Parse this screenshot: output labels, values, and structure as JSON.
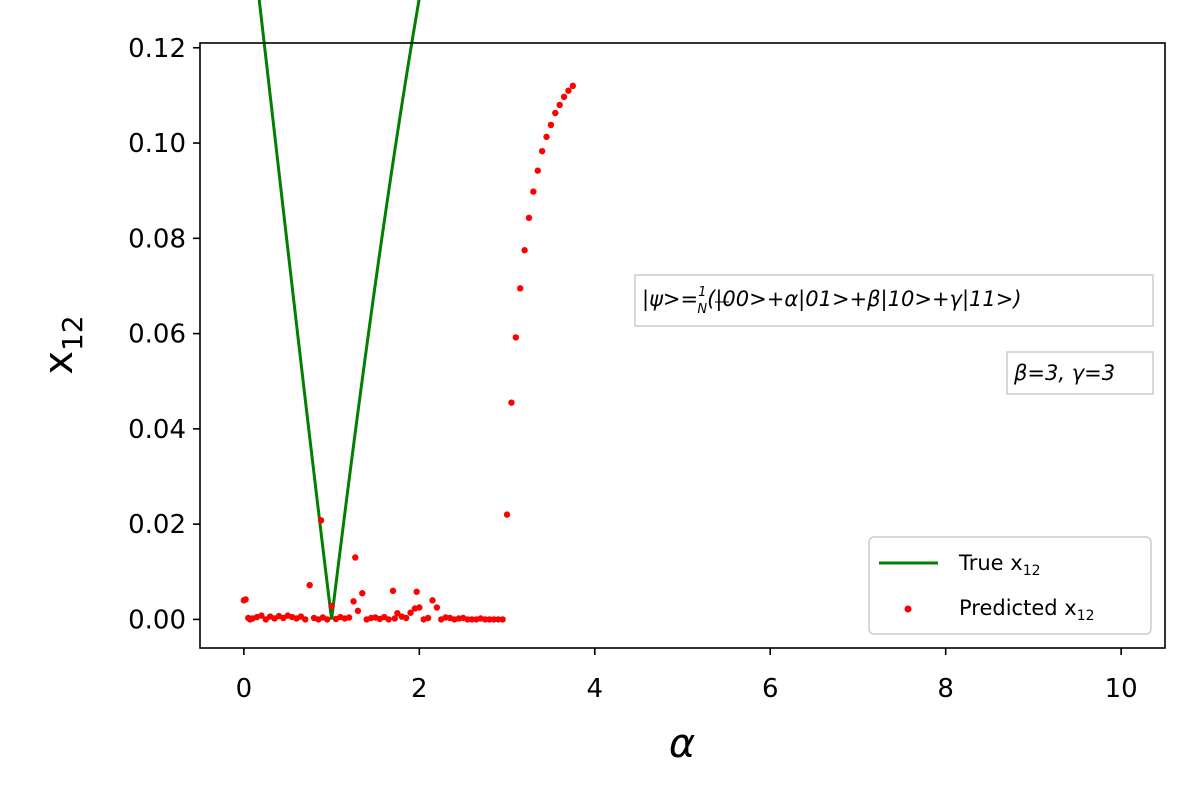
{
  "chart_data": {
    "type": "scatter",
    "xlabel": "α",
    "ylabel": "x",
    "ylabel_sub": "12",
    "xlim": [
      -0.5,
      10.5
    ],
    "ylim": [
      -0.006,
      0.121
    ],
    "grid": false,
    "x_ticks": [
      0,
      2,
      4,
      6,
      8,
      10
    ],
    "x_tick_labels": [
      "0",
      "2",
      "4",
      "6",
      "8",
      "10"
    ],
    "y_ticks": [
      0.0,
      0.02,
      0.04,
      0.06,
      0.08,
      0.1,
      0.12
    ],
    "y_tick_labels": [
      "0.00",
      "0.02",
      "0.04",
      "0.06",
      "0.08",
      "0.10",
      "0.12"
    ],
    "legend": {
      "placement": "lower right",
      "entries": [
        {
          "label": "True x",
          "sub": "12",
          "marker": "line",
          "color": "#008000"
        },
        {
          "label": "Predicted x",
          "sub": "12",
          "marker": "dot",
          "color": "#ff0000"
        }
      ]
    },
    "annotations": [
      {
        "text_pre": "|ψ>=",
        "frac_num": "1",
        "frac_den": "N",
        "text_post": "(|00>+α|01>+β|10>+γ|11>)"
      },
      {
        "text": "β=3, γ=3"
      }
    ],
    "series": [
      {
        "name": "True x12",
        "kind": "line",
        "color": "#008000",
        "formula_params": {
          "beta": 3,
          "gamma": 3
        },
        "x_range": [
          0,
          10
        ],
        "samples": 400
      },
      {
        "name": "Predicted x12",
        "kind": "scatter",
        "color": "#ff0000",
        "low_region": {
          "x": [
            0.0,
            0.02,
            0.05,
            0.07,
            0.1,
            0.15,
            0.2,
            0.25,
            0.3,
            0.35,
            0.4,
            0.45,
            0.5,
            0.55,
            0.6,
            0.65,
            0.7,
            0.75,
            0.8,
            0.85,
            0.88,
            0.9,
            0.95,
            1.0,
            1.05,
            1.1,
            1.15,
            1.2,
            1.25,
            1.27,
            1.3,
            1.35,
            1.4,
            1.45,
            1.5,
            1.55,
            1.6,
            1.65,
            1.7,
            1.72,
            1.75,
            1.8,
            1.85,
            1.9,
            1.95,
            1.97,
            2.0,
            2.05,
            2.1,
            2.15,
            2.2,
            2.25,
            2.3,
            2.35,
            2.4,
            2.45,
            2.5,
            2.55,
            2.6,
            2.65,
            2.7,
            2.75,
            2.8,
            2.85,
            2.9,
            2.95
          ],
          "y": [
            0.004,
            0.0042,
            0.0003,
            0.0,
            0.0002,
            0.0005,
            0.0008,
            0.0,
            0.0006,
            0.0002,
            0.0007,
            0.0003,
            0.0008,
            0.0005,
            0.0002,
            0.0006,
            0.0,
            0.0072,
            0.0003,
            0.0,
            0.0208,
            0.0004,
            0.0,
            0.0028,
            0.0001,
            0.0005,
            0.0002,
            0.0004,
            0.0038,
            0.013,
            0.0018,
            0.0055,
            0.0,
            0.0003,
            0.0004,
            0.0001,
            0.0005,
            0.0,
            0.006,
            0.0002,
            0.0013,
            0.0006,
            0.0003,
            0.0014,
            0.0023,
            0.0058,
            0.0025,
            0.0,
            0.0003,
            0.004,
            0.0025,
            0.0,
            0.0004,
            0.0003,
            0.0,
            0.0002,
            0.0003,
            0.0,
            0.0,
            0.0,
            0.0002,
            0.0,
            0.0,
            0.0,
            0.0,
            0.0
          ]
        },
        "rise_region": {
          "x": [
            3.0,
            3.05,
            3.1,
            3.15,
            3.2,
            3.25,
            3.3,
            3.35,
            3.4,
            3.45,
            3.5,
            3.55,
            3.6,
            3.65,
            3.7,
            3.75
          ],
          "y": [
            0.022,
            0.0455,
            0.0592,
            0.0695,
            0.0775,
            0.0843,
            0.0898,
            0.0942,
            0.0983,
            0.1013,
            0.1038,
            0.1063,
            0.108,
            0.1097,
            0.111,
            0.112
          ]
        },
        "follow_truth_from": 3.8,
        "follow_step": 0.05
      }
    ]
  }
}
